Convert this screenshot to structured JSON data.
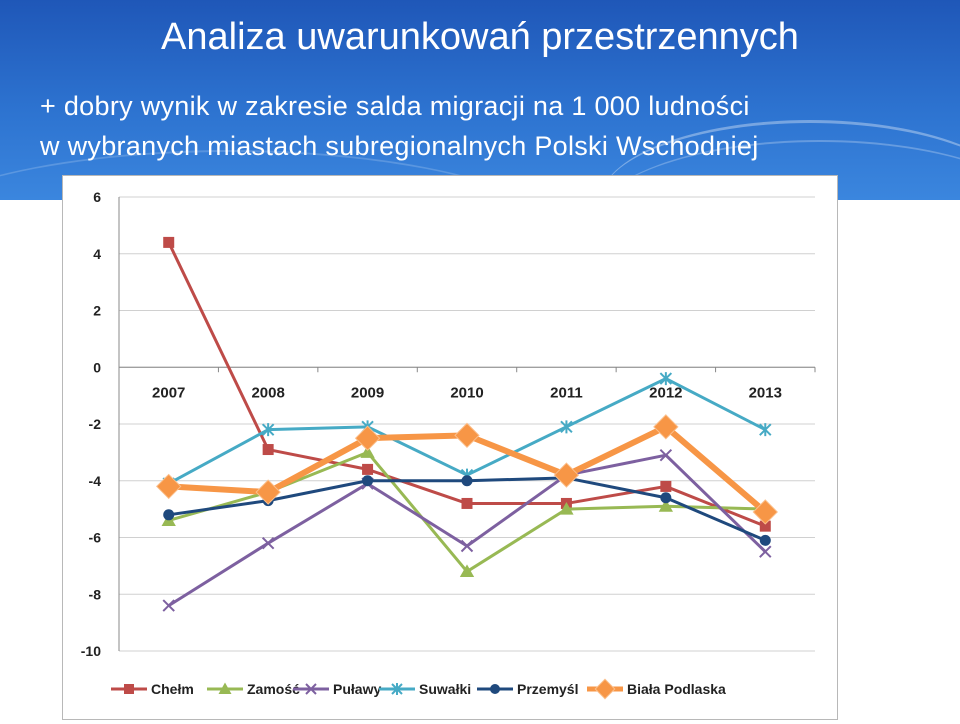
{
  "slide": {
    "title": "Analiza uwarunkowań przestrzennych",
    "subtitle_line1": "+ dobry wynik w zakresie salda migracji na 1 000 ludności",
    "subtitle_line2": "w wybranych miastach subregionalnych Polski Wschodniej"
  },
  "chart_data": {
    "type": "line",
    "title": "",
    "xlabel": "",
    "ylabel": "",
    "categories": [
      "2007",
      "2008",
      "2009",
      "2010",
      "2011",
      "2012",
      "2013"
    ],
    "yticks": [
      "6",
      "4",
      "2",
      "0",
      "-2",
      "-4",
      "-6",
      "-8",
      "-10"
    ],
    "ylim": [
      -10,
      6
    ],
    "grid": true,
    "legend_position": "bottom",
    "series": [
      {
        "name": "Chełm",
        "color": "#be4b48",
        "marker": "square",
        "values": [
          4.4,
          -2.9,
          -3.6,
          -4.8,
          -4.8,
          -4.2,
          -5.6
        ]
      },
      {
        "name": "Zamość",
        "color": "#98b954",
        "marker": "triangle",
        "values": [
          -5.4,
          -4.4,
          -3.0,
          -7.2,
          -5.0,
          -4.9,
          -5.0
        ]
      },
      {
        "name": "Puławy",
        "color": "#7d60a0",
        "marker": "x",
        "values": [
          -8.4,
          -6.2,
          -4.1,
          -6.3,
          -3.8,
          -3.1,
          -6.5
        ]
      },
      {
        "name": "Suwałki",
        "color": "#46aac5",
        "marker": "star",
        "values": [
          -4.1,
          -2.2,
          -2.1,
          -3.8,
          -2.1,
          -0.4,
          -2.2
        ]
      },
      {
        "name": "Przemyśl",
        "color": "#1f497d",
        "marker": "circle",
        "values": [
          -5.2,
          -4.7,
          -4.0,
          -4.0,
          -3.9,
          -4.6,
          -6.1
        ]
      },
      {
        "name": "Biała Podlaska",
        "color": "#f79646",
        "marker": "diamond",
        "values": [
          -4.2,
          -4.4,
          -2.5,
          -2.4,
          -3.8,
          -2.1,
          -5.1
        ]
      }
    ]
  }
}
